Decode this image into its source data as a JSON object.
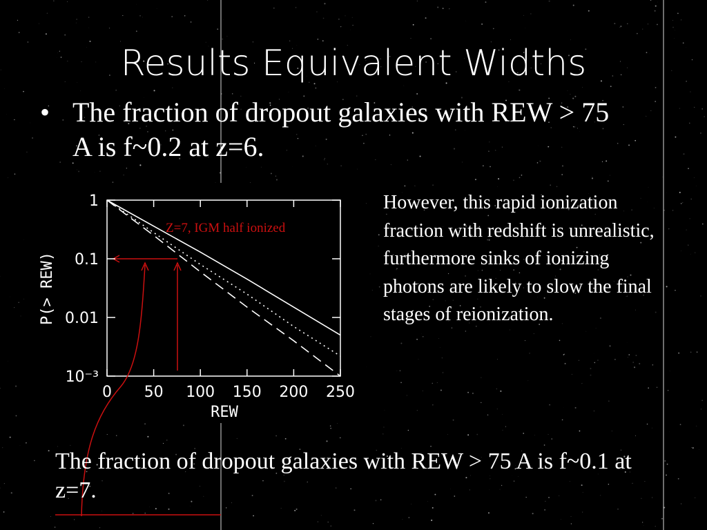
{
  "slide": {
    "title": "Results Equivalent Widths",
    "bullet": "The fraction of dropout galaxies with REW > 75 A is f~0.2 at z=6.",
    "side_text": "However, this rapid ionization fraction with redshift is unrealistic, furthermore sinks of ionizing photons are likely to slow the final stages of reionization.",
    "bottom_text": "The fraction of dropout galaxies with REW > 75 A is f~0.1 at z=7."
  },
  "chart_data": {
    "type": "line",
    "xlabel": "REW",
    "ylabel": "P(> REW)",
    "annotation": "Z=7, IGM half ionized",
    "annotation_color": "#cc1010",
    "x": [
      0,
      50,
      100,
      150,
      200,
      250
    ],
    "series": [
      {
        "color": "#ffffff",
        "line_style": "solid",
        "values": [
          1,
          0.36,
          0.13,
          0.045,
          0.015,
          0.005
        ]
      },
      {
        "color": "#ffffff",
        "line_style": "dotted",
        "values": [
          1,
          0.28,
          0.08,
          0.025,
          0.007,
          0.0022
        ]
      },
      {
        "color": "#ffffff",
        "line_style": "dashed",
        "values": [
          1,
          0.25,
          0.06,
          0.015,
          0.004,
          0.001
        ]
      }
    ],
    "xlim": [
      0,
      250
    ],
    "ylim": [
      0.001,
      1
    ],
    "log_y": true,
    "xticks": [
      0,
      50,
      100,
      150,
      200,
      250
    ],
    "yticks": [
      1,
      0.1,
      0.01,
      {
        "value": 0.001,
        "label": "10⁻³"
      }
    ]
  }
}
